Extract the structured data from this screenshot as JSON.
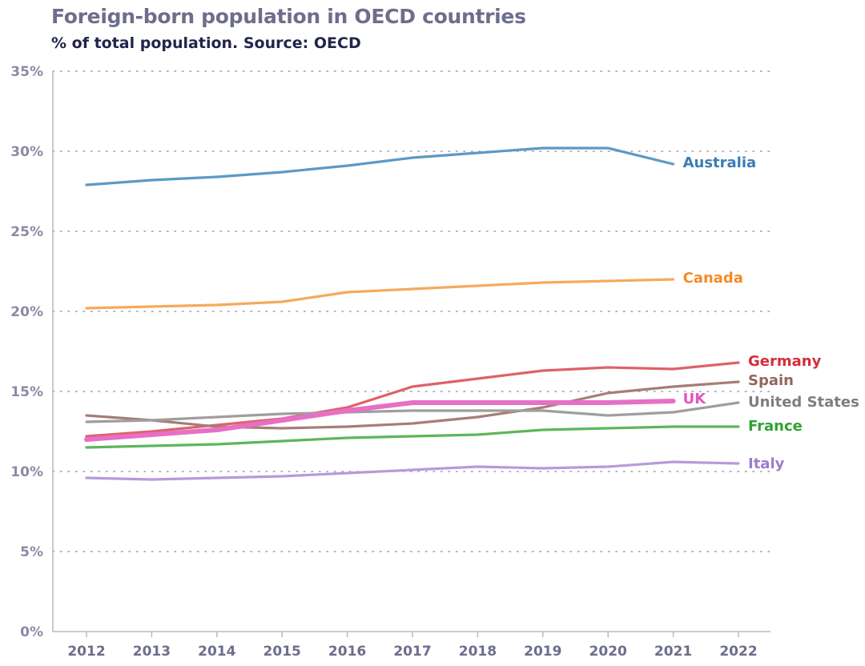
{
  "chart_data": {
    "type": "line",
    "title": "Foreign-born population in OECD countries",
    "subtitle": "% of total population. Source: OECD",
    "x": [
      2012,
      2013,
      2014,
      2015,
      2016,
      2017,
      2018,
      2019,
      2020,
      2021,
      2022
    ],
    "ylim": [
      0,
      35
    ],
    "yticks": [
      0,
      5,
      10,
      15,
      20,
      25,
      30,
      35
    ],
    "ytick_labels": [
      "0%",
      "5%",
      "10%",
      "15%",
      "20%",
      "25%",
      "30%",
      "35%"
    ],
    "xtick_labels": [
      "2012",
      "2013",
      "2014",
      "2015",
      "2016",
      "2017",
      "2018",
      "2019",
      "2020",
      "2021",
      "2022"
    ],
    "grid": "horizontal-dotted",
    "legend": "direct-labels-right",
    "series": [
      {
        "name": "Australia",
        "color": "#5b9ac6",
        "label_color": "#3b7db5",
        "values": [
          27.9,
          28.2,
          28.4,
          28.7,
          29.1,
          29.6,
          29.9,
          30.2,
          30.2,
          29.2,
          null
        ]
      },
      {
        "name": "Canada",
        "color": "#f7a95c",
        "label_color": "#f58a26",
        "values": [
          20.2,
          20.3,
          20.4,
          20.6,
          21.2,
          21.4,
          21.6,
          21.8,
          21.9,
          22.0,
          null
        ]
      },
      {
        "name": "Germany",
        "color": "#dd6268",
        "label_color": "#d42e3a",
        "values": [
          12.2,
          12.5,
          12.9,
          13.3,
          14.0,
          15.3,
          15.8,
          16.3,
          16.5,
          16.4,
          16.8
        ]
      },
      {
        "name": "Spain",
        "color": "#a67d76",
        "label_color": "#94655e",
        "values": [
          13.5,
          13.2,
          12.8,
          12.7,
          12.8,
          13.0,
          13.4,
          14.0,
          14.9,
          15.3,
          15.6
        ]
      },
      {
        "name": "United States",
        "color": "#9e9e9e",
        "label_color": "#7e7e7e",
        "values": [
          13.1,
          13.2,
          13.4,
          13.6,
          13.7,
          13.8,
          13.8,
          13.8,
          13.5,
          13.7,
          14.3
        ]
      },
      {
        "name": "France",
        "color": "#5db65c",
        "label_color": "#33a033",
        "values": [
          11.5,
          11.6,
          11.7,
          11.9,
          12.1,
          12.2,
          12.3,
          12.6,
          12.7,
          12.8,
          12.8
        ]
      },
      {
        "name": "UK",
        "color": "#e670c6",
        "label_color": "#e356bd",
        "emphasis": true,
        "values": [
          12.0,
          12.3,
          12.6,
          13.2,
          13.8,
          14.3,
          14.3,
          14.3,
          14.3,
          14.4,
          null
        ]
      },
      {
        "name": "Italy",
        "color": "#b59bda",
        "label_color": "#9d7bcf",
        "values": [
          9.6,
          9.5,
          9.6,
          9.7,
          9.9,
          10.1,
          10.3,
          10.2,
          10.3,
          10.6,
          10.5
        ]
      }
    ]
  }
}
